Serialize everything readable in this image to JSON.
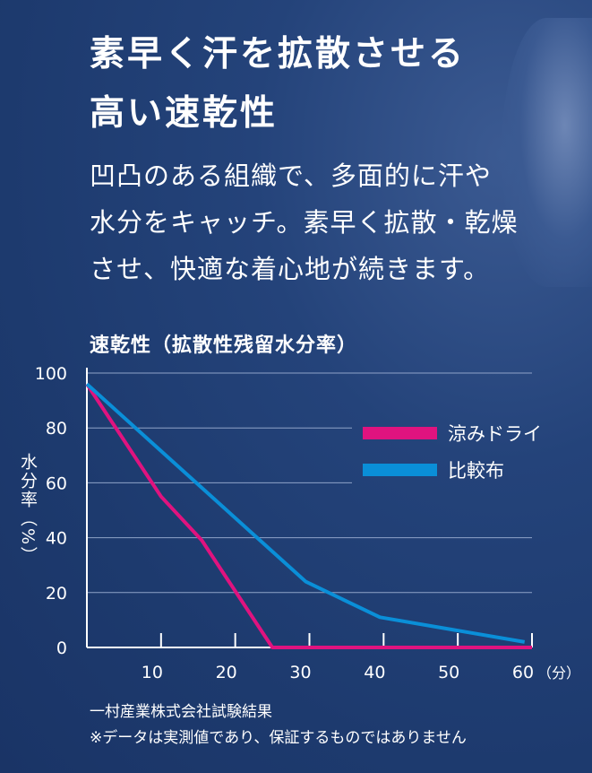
{
  "headline": [
    "素早く汗を拡散させる",
    "高い速乾性"
  ],
  "body": [
    "凹凸のある組織で、多面的に汗や",
    "水分をキャッチ。素早く拡散・乾燥",
    "させ、快適な着心地が続きます。"
  ],
  "footnotes": [
    "一村産業株式会社試験結果",
    "※データは実測値であり、保証するものではありません"
  ],
  "chart_data": {
    "type": "line",
    "title": "速乾性（拡散性残留水分率）",
    "xlabel": "（分）",
    "ylabel": "水分率（%）",
    "xlim": [
      0,
      60
    ],
    "ylim": [
      0,
      100
    ],
    "xticks": [
      10,
      20,
      30,
      40,
      50,
      60
    ],
    "yticks": [
      0,
      20,
      40,
      60,
      80,
      100
    ],
    "grid": true,
    "legend": "right",
    "series": [
      {
        "name": "涼みドライ",
        "color": "#e0137f",
        "x": [
          0,
          10,
          15.5,
          25,
          60
        ],
        "y": [
          96,
          55,
          39,
          0,
          0
        ]
      },
      {
        "name": "比較布",
        "color": "#0a8fd8",
        "x": [
          0,
          29.5,
          39.5,
          59
        ],
        "y": [
          96,
          24,
          11,
          2
        ]
      }
    ]
  }
}
